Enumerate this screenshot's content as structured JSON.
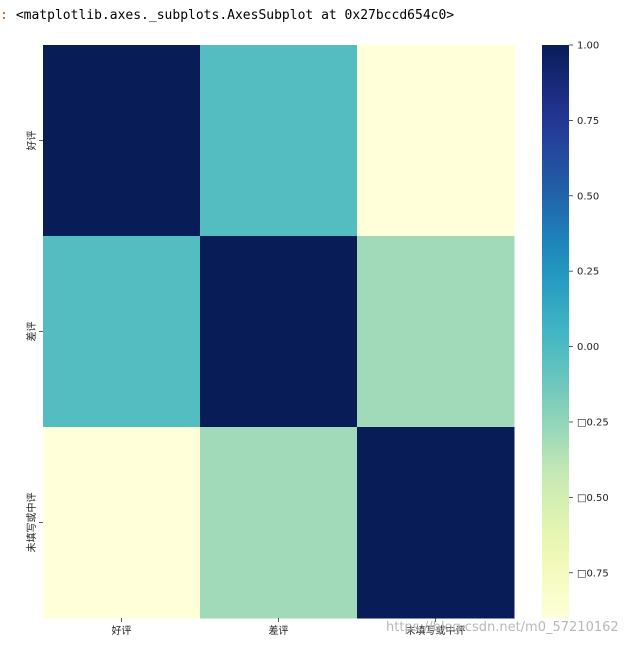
{
  "output": {
    "prompt": ":",
    "text": "<matplotlib.axes._subplots.AxesSubplot at 0x27bccd654c0>"
  },
  "chart_data": {
    "type": "heatmap",
    "title": "",
    "xlabel": "",
    "ylabel": "",
    "x_labels": [
      "好评",
      "差评",
      "未填写或中评"
    ],
    "y_labels": [
      "好评",
      "差评",
      "未填写或中评"
    ],
    "values": [
      [
        1.0,
        -0.02,
        -0.9
      ],
      [
        -0.02,
        1.0,
        -0.3
      ],
      [
        -0.9,
        -0.3,
        1.0
      ]
    ],
    "colormap": "YlGnBu",
    "vmin": -0.9,
    "vmax": 1.0,
    "colorbar": {
      "ticks": [
        1.0,
        0.75,
        0.5,
        0.25,
        0.0,
        -0.25,
        -0.5,
        -0.75
      ],
      "tick_labels": [
        "1.00",
        "0.75",
        "0.50",
        "0.25",
        "0.00",
        "□0.25",
        "□0.50",
        "□0.75"
      ]
    },
    "grid": false
  },
  "watermark": "https://blog.csdn.net/m0_57210162"
}
